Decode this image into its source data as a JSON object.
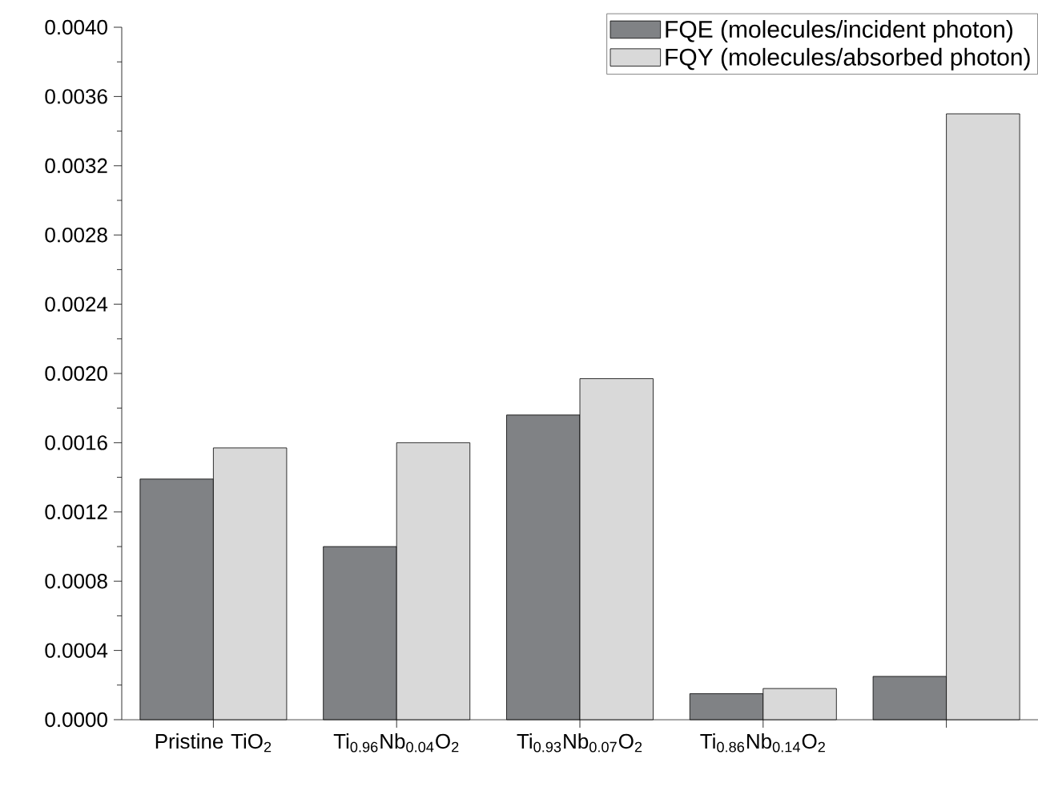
{
  "chart_data": {
    "type": "bar",
    "categories": [
      "Pristine TiO$_{2}$",
      "Ti$_{0.96}$Nb$_{0.04}$O$_{2}$",
      "Ti$_{0.93}$Nb$_{0.07}$O$_{2}$",
      "Ti$_{0.86}$Nb$_{0.14}$O$_{2}$",
      null
    ],
    "series": [
      {
        "name": "FQE (molecules/incident photon)",
        "color": "#808285",
        "values": [
          0.00139,
          0.001,
          0.00176,
          0.00015,
          0.00025
        ]
      },
      {
        "name": "FQY (molecules/absorbed photon)",
        "color": "#d9d9d9",
        "values": [
          0.00157,
          0.0016,
          0.00197,
          0.00018,
          0.0035
        ]
      }
    ],
    "ylim": [
      0,
      0.004
    ],
    "yticks": [
      {
        "value": 0,
        "label": "0.0000"
      },
      {
        "value": 0.0004,
        "label": "0.0004"
      },
      {
        "value": 0.0008,
        "label": "0.0008"
      },
      {
        "value": 0.0012,
        "label": "0.0012"
      },
      {
        "value": 0.0016,
        "label": "0.0016"
      },
      {
        "value": 0.002,
        "label": "0.0020"
      },
      {
        "value": 0.0024,
        "label": "0.0024"
      },
      {
        "value": 0.0028,
        "label": "0.0028"
      },
      {
        "value": 0.0032,
        "label": "0.0032"
      },
      {
        "value": 0.0036,
        "label": "0.0036"
      },
      {
        "value": 0.004,
        "label": "0.0040"
      }
    ],
    "legend": "top right",
    "grid": false
  }
}
